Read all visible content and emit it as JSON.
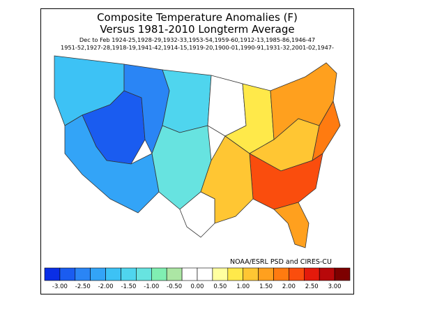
{
  "title_line_1": "Composite Temperature Anomalies (F)",
  "title_line_2": "Versus 1981-2010 Longterm Average",
  "season_line": "Dec to Feb  1924-25,1928-29,1932-33,1953-54,1959-60,1912-13,1985-86,1946-47",
  "years_line_2": "1951-52,1927-28,1918-19,1941-42,1914-15,1919-20,1900-01,1990-91,1931-32,2001-02,1947-",
  "credit": "NOAA/ESRL PSD and CIRES-CU",
  "colorbar": {
    "colors": [
      "#0a2ee6",
      "#1a5cf0",
      "#2a85f5",
      "#33a4f7",
      "#3dc2f5",
      "#4fd5ee",
      "#67e3e0",
      "#80efb2",
      "#ace6a4",
      "#ffffff",
      "#ffffff",
      "#ffffa0",
      "#ffe94a",
      "#ffc633",
      "#ffa01e",
      "#ff7b10",
      "#fa4d0d",
      "#e41a0b",
      "#b8080a",
      "#7d0000"
    ],
    "labels": [
      "-3.00",
      "-2.50",
      "-2.00",
      "-1.50",
      "-1.00",
      "-0.50",
      "0.00",
      "0.50",
      "1.00",
      "1.50",
      "2.00",
      "2.50",
      "3.00"
    ]
  },
  "regions": [
    {
      "name": "northwest",
      "color": "#3dc2f5"
    },
    {
      "name": "great-basin",
      "color": "#1a5cf0"
    },
    {
      "name": "rockies",
      "color": "#2a85f5"
    },
    {
      "name": "northern-plains",
      "color": "#4fd5ee"
    },
    {
      "name": "southwest",
      "color": "#33a4f7"
    },
    {
      "name": "southern-plains",
      "color": "#67e3e0"
    },
    {
      "name": "upper-midwest",
      "color": "#ffffff"
    },
    {
      "name": "midwest",
      "color": "#ffe94a"
    },
    {
      "name": "ohio-valley",
      "color": "#ffc633"
    },
    {
      "name": "northeast",
      "color": "#ffa01e"
    },
    {
      "name": "mid-atlantic",
      "color": "#ff7b10"
    },
    {
      "name": "southeast",
      "color": "#fa4d0d"
    },
    {
      "name": "florida",
      "color": "#ffa01e"
    },
    {
      "name": "gulf-coast",
      "color": "#ffc633"
    },
    {
      "name": "texas-west",
      "color": "#ffffff"
    }
  ]
}
